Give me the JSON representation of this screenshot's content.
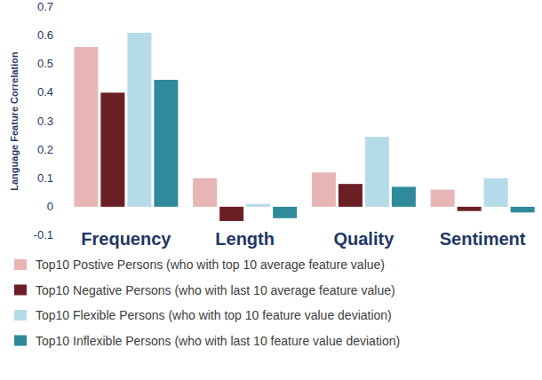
{
  "chart_data": {
    "type": "bar",
    "y_label": "Language Feature Correlation",
    "categories": [
      "Frequency",
      "Length",
      "Quality",
      "Sentiment"
    ],
    "series": [
      {
        "name": "Top10 Postive Persons (who with top 10 average feature value)",
        "color": "#e8b5b5",
        "values": [
          0.56,
          0.1,
          0.12,
          0.06
        ]
      },
      {
        "name": "Top10 Negative Persons (who with last 10 average feature value)",
        "color": "#6b1f25",
        "values": [
          0.4,
          -0.05,
          0.08,
          -0.015
        ]
      },
      {
        "name": "Top10 Flexible Persons (who with top 10 feature value deviation)",
        "color": "#b5dbe8",
        "values": [
          0.61,
          0.01,
          0.245,
          0.1
        ]
      },
      {
        "name": "Top10 Inflexible Persons (who with last 10 feature value deviation)",
        "color": "#2f8a9c",
        "values": [
          0.445,
          -0.04,
          0.07,
          -0.02
        ]
      }
    ],
    "ylim": [
      -0.1,
      0.7
    ],
    "yticks": [
      -0.1,
      0,
      0.1,
      0.2,
      0.3,
      0.4,
      0.5,
      0.6,
      0.7
    ],
    "grid": false,
    "legend": "bottom"
  }
}
